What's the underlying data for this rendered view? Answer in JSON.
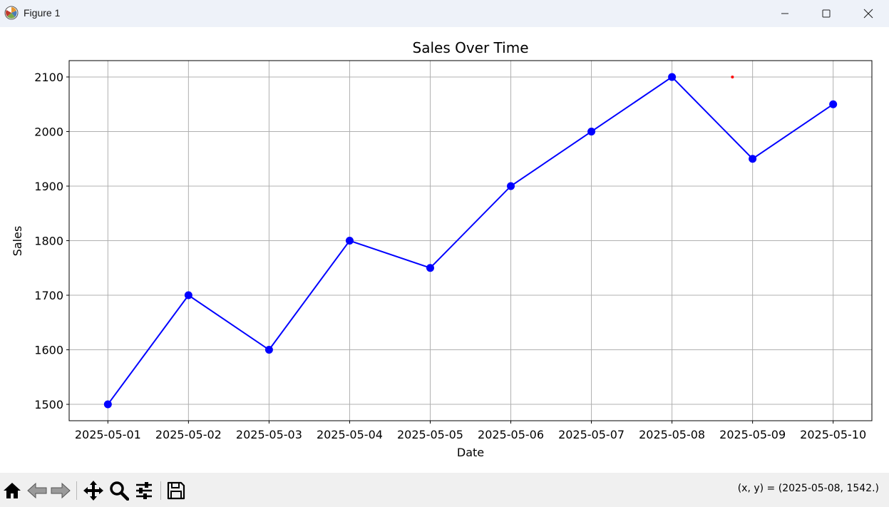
{
  "window": {
    "title": "Figure 1",
    "app_icon": "matplotlib-logo-icon",
    "controls": [
      "minimize-icon",
      "maximize-icon",
      "close-icon"
    ]
  },
  "toolbar": {
    "buttons": [
      {
        "name": "home-button",
        "icon": "home-icon"
      },
      {
        "name": "back-button",
        "icon": "back-arrow-icon"
      },
      {
        "name": "forward-button",
        "icon": "forward-arrow-icon"
      },
      {
        "name": "pan-button",
        "icon": "move-icon"
      },
      {
        "name": "zoom-button",
        "icon": "magnifier-icon"
      },
      {
        "name": "configure-subplots-button",
        "icon": "sliders-icon"
      },
      {
        "name": "save-button",
        "icon": "floppy-disk-icon"
      }
    ],
    "coords": "(x, y) = (2025-05-08, 1542.)"
  },
  "chart_data": {
    "type": "line",
    "title": "Sales Over Time",
    "xlabel": "Date",
    "ylabel": "Sales",
    "x": [
      "2025-05-01",
      "2025-05-02",
      "2025-05-03",
      "2025-05-04",
      "2025-05-05",
      "2025-05-06",
      "2025-05-07",
      "2025-05-08",
      "2025-05-09",
      "2025-05-10"
    ],
    "series": [
      {
        "values": [
          1500,
          1700,
          1600,
          1800,
          1750,
          1900,
          2000,
          2100,
          1950,
          2050
        ],
        "color": "#0000ff",
        "marker": "circle"
      }
    ],
    "yticks": [
      1500,
      1600,
      1700,
      1800,
      1900,
      2000,
      2100
    ],
    "ylim": [
      1470,
      2130
    ],
    "xlim": [
      "2025-04-30 12:28",
      "2025-05-10 11:32"
    ],
    "grid": true,
    "annotation_point": {
      "x": "2025-05-08 18:00",
      "y": 2100,
      "color": "#ff0000"
    }
  }
}
